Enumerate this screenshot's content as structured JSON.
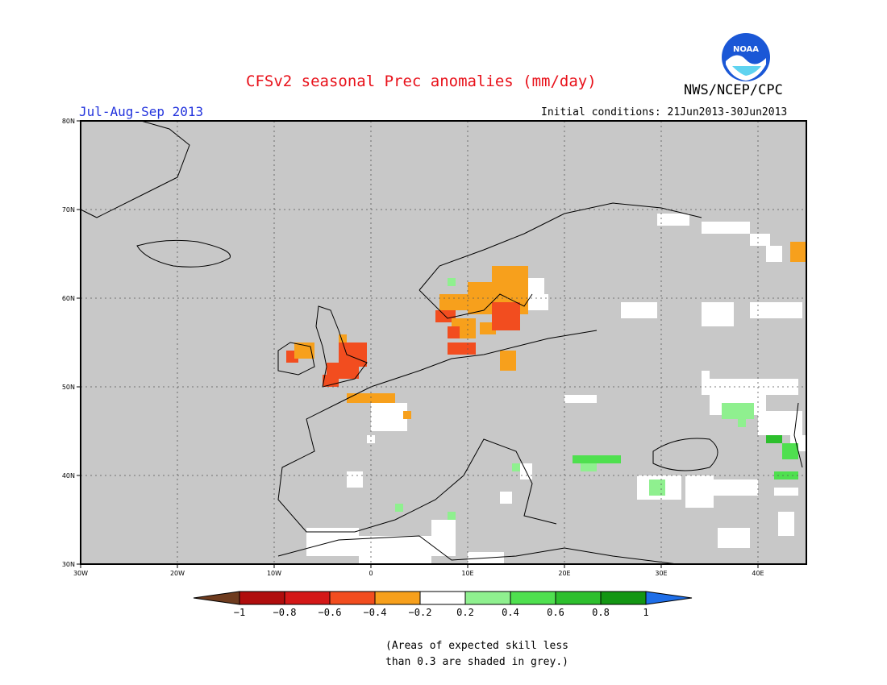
{
  "header": {
    "title": "CFSv2 seasonal Prec anomalies (mm/day)",
    "org": "NWS/NCEP/CPC",
    "period": "Jul-Aug-Sep 2013",
    "initial_conditions": "Initial conditions: 21Jun2013-30Jun2013",
    "logo_text": "NOAA"
  },
  "axes": {
    "lat_labels": [
      "80N",
      "70N",
      "60N",
      "50N",
      "40N",
      "30N"
    ],
    "lon_labels": [
      "30W",
      "20W",
      "10W",
      "0",
      "10E",
      "20E",
      "30E",
      "40E"
    ]
  },
  "colorbar": {
    "tick_labels": [
      "−1",
      "−0.8",
      "−0.6",
      "−0.4",
      "−0.2",
      "0.2",
      "0.4",
      "0.6",
      "0.8",
      "1"
    ],
    "colors": [
      "#6e3b1e",
      "#b00d0d",
      "#d41818",
      "#f24d1f",
      "#f7a01c",
      "#ffffff",
      "#8ff08f",
      "#4fe04f",
      "#2dbf2d",
      "#139613",
      "#1e6ee8"
    ]
  },
  "note": {
    "line1": "(Areas of expected skill less",
    "line2": "than 0.3 are shaded in grey.)"
  },
  "colors": {
    "grey_mask": "#c8c8c8",
    "title_red": "#e8111a",
    "period_blue": "#2233dd"
  }
}
